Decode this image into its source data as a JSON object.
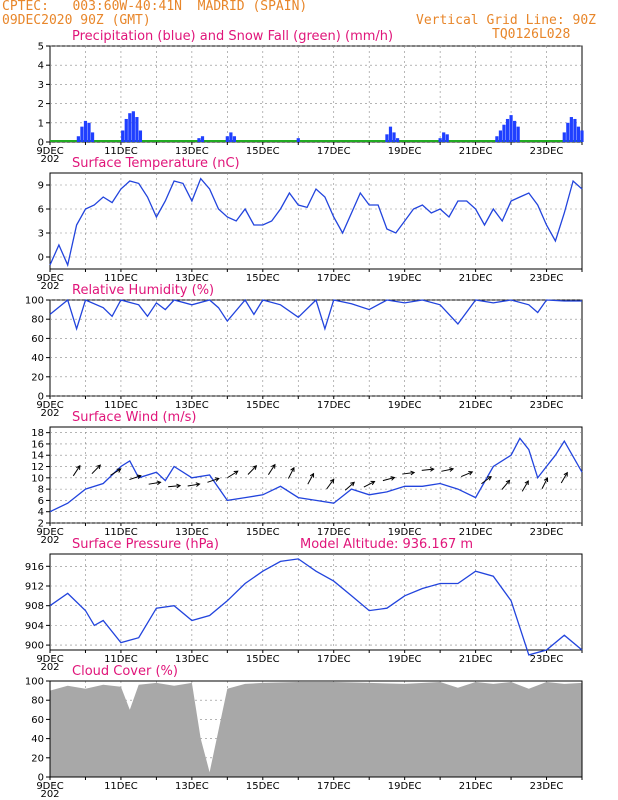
{
  "header": {
    "line1_left": "CPTEC:   003:60W-40:41N  MADRID (SPAIN)",
    "line2_left": "09DEC2020 90Z (GMT)",
    "line2_right": "Vertical Grid Line: 90Z",
    "line3_right": "TQ0126L028"
  },
  "x_axis": {
    "labels": [
      "9DEC",
      "11DEC",
      "13DEC",
      "15DEC",
      "17DEC",
      "19DEC",
      "21DEC",
      "23DEC"
    ],
    "year_stub": "202"
  },
  "colors": {
    "header": "#e8862a",
    "title": "#e0157a",
    "precip": "#1f3fff",
    "snow": "#22aa22",
    "line": "#2244dd",
    "cloud": "#a8a8a8",
    "arrow": "#000000"
  },
  "chart_data": [
    {
      "type": "bar",
      "name": "precipitation",
      "title": "Precipitation (blue) and Snow Fall (green) (mm/h)",
      "ylim": [
        0,
        5
      ],
      "yticks": [
        0,
        1,
        2,
        3,
        4,
        5
      ],
      "x_range_days": [
        0,
        15
      ],
      "series": [
        {
          "name": "Precipitation",
          "x": [
            0.8,
            0.9,
            1.0,
            1.1,
            1.2,
            2.05,
            2.15,
            2.25,
            2.35,
            2.45,
            2.55,
            4.2,
            4.3,
            5.0,
            5.1,
            5.2,
            7.0,
            9.5,
            9.6,
            9.7,
            9.8,
            11.0,
            11.1,
            11.2,
            12.6,
            12.7,
            12.8,
            12.9,
            13.0,
            13.1,
            13.2,
            14.5,
            14.6,
            14.7,
            14.8,
            14.9,
            15.0
          ],
          "values": [
            0.3,
            0.8,
            1.1,
            1.0,
            0.5,
            0.6,
            1.2,
            1.5,
            1.6,
            1.3,
            0.6,
            0.2,
            0.3,
            0.3,
            0.5,
            0.3,
            0.2,
            0.4,
            0.8,
            0.5,
            0.2,
            0.2,
            0.5,
            0.4,
            0.3,
            0.6,
            0.9,
            1.2,
            1.4,
            1.1,
            0.8,
            0.5,
            1.0,
            1.3,
            1.2,
            0.8,
            0.6
          ]
        },
        {
          "name": "Snow Fall",
          "x": [],
          "values": []
        }
      ]
    },
    {
      "type": "line",
      "name": "temperature",
      "title": "Surface Temperature (nC)",
      "ylim": [
        -1.5,
        10.5
      ],
      "yticks": [
        0,
        3,
        6,
        9
      ],
      "x": [
        0,
        0.25,
        0.5,
        0.75,
        1,
        1.25,
        1.5,
        1.75,
        2,
        2.25,
        2.5,
        2.75,
        3,
        3.25,
        3.5,
        3.75,
        4,
        4.25,
        4.5,
        4.75,
        5,
        5.25,
        5.5,
        5.75,
        6,
        6.25,
        6.5,
        6.75,
        7,
        7.25,
        7.5,
        7.75,
        8,
        8.25,
        8.5,
        8.75,
        9,
        9.25,
        9.5,
        9.75,
        10,
        10.25,
        10.5,
        10.75,
        11,
        11.25,
        11.5,
        11.75,
        12,
        12.25,
        12.5,
        12.75,
        13,
        13.25,
        13.5,
        13.75,
        14,
        14.25,
        14.5,
        14.75,
        15
      ],
      "values": [
        -1,
        1.5,
        -1,
        4,
        6,
        6.5,
        7.5,
        6.8,
        8.5,
        9.5,
        9.2,
        7.5,
        5,
        7,
        9.5,
        9.2,
        7,
        9.8,
        8.5,
        6,
        5,
        4.5,
        6,
        4,
        4,
        4.5,
        6,
        8,
        6.5,
        6.2,
        8.5,
        7.5,
        5,
        3,
        5.5,
        8,
        6.5,
        6.5,
        3.5,
        3,
        4.5,
        6,
        6.5,
        5.5,
        6,
        5,
        7,
        7,
        6,
        4,
        6,
        4.5,
        7,
        7.5,
        8,
        6.5,
        4,
        2,
        5.5,
        9.5,
        8.5
      ]
    },
    {
      "type": "line",
      "name": "humidity",
      "title": "Relative Humidity (%)",
      "ylim": [
        0,
        100
      ],
      "yticks": [
        0,
        20,
        40,
        60,
        80,
        100
      ],
      "x": [
        0,
        0.5,
        0.75,
        1,
        1.5,
        1.75,
        2,
        2.5,
        2.75,
        3,
        3.25,
        3.5,
        4,
        4.5,
        4.75,
        5,
        5.5,
        5.75,
        6,
        6.5,
        7,
        7.5,
        7.75,
        8,
        8.5,
        9,
        9.5,
        10,
        10.5,
        11,
        11.5,
        12,
        12.5,
        13,
        13.5,
        13.75,
        14,
        14.5,
        15
      ],
      "values": [
        85,
        100,
        70,
        100,
        92,
        83,
        100,
        95,
        83,
        97,
        90,
        100,
        95,
        100,
        92,
        78,
        100,
        85,
        100,
        95,
        82,
        100,
        70,
        100,
        96,
        90,
        100,
        97,
        100,
        95,
        75,
        100,
        97,
        100,
        95,
        87,
        100,
        99,
        99
      ]
    },
    {
      "type": "line",
      "name": "wind",
      "title": "Surface Wind (m/s)",
      "ylim": [
        2,
        19
      ],
      "yticks": [
        2,
        4,
        6,
        8,
        10,
        12,
        14,
        16,
        18
      ],
      "x": [
        0,
        0.5,
        1,
        1.5,
        2,
        2.25,
        2.5,
        3,
        3.25,
        3.5,
        4,
        4.5,
        5,
        5.5,
        6,
        6.5,
        7,
        7.5,
        8,
        8.5,
        9,
        9.5,
        10,
        10.5,
        11,
        11.5,
        12,
        12.5,
        13,
        13.25,
        13.5,
        13.75,
        14,
        14.25,
        14.5,
        15
      ],
      "values": [
        4,
        5.5,
        8,
        9,
        12,
        13,
        10,
        11,
        9.5,
        12,
        10,
        10.5,
        6,
        6.5,
        7,
        8.5,
        6.5,
        6,
        5.5,
        8,
        7,
        7.5,
        8.5,
        8.5,
        9,
        8,
        6.5,
        12,
        14,
        17,
        15,
        10,
        12,
        14,
        16.5,
        11
      ]
    },
    {
      "type": "line",
      "name": "pressure",
      "title": "Surface Pressure (hPa)",
      "annotation": "Model Altitude: 936.167 m",
      "ylim": [
        899,
        918.5
      ],
      "yticks": [
        900,
        904,
        908,
        912,
        916
      ],
      "x": [
        0,
        0.5,
        1,
        1.25,
        1.5,
        2,
        2.5,
        3,
        3.5,
        4,
        4.5,
        5,
        5.5,
        6,
        6.5,
        7,
        7.5,
        8,
        8.5,
        9,
        9.5,
        10,
        10.5,
        11,
        11.5,
        12,
        12.5,
        13,
        13.5,
        14,
        14.5,
        15
      ],
      "values": [
        908,
        910.5,
        907,
        904,
        905,
        900.5,
        901.5,
        907.5,
        908,
        905,
        906,
        909,
        912.5,
        915,
        917,
        917.5,
        915,
        913,
        910,
        907,
        907.5,
        910,
        911.5,
        912.5,
        912.5,
        915,
        914,
        909,
        898,
        899,
        902,
        899
      ]
    },
    {
      "type": "area",
      "name": "cloud_cover",
      "title": "Cloud Cover (%)",
      "ylim": [
        0,
        100
      ],
      "yticks": [
        0,
        20,
        40,
        60,
        80,
        100
      ],
      "x": [
        0,
        0.5,
        1,
        1.5,
        2,
        2.25,
        2.5,
        3,
        3.5,
        4,
        4.25,
        4.5,
        5,
        5.5,
        6,
        7,
        8,
        9,
        10,
        11,
        11.5,
        12,
        12.5,
        13,
        13.5,
        14,
        14.5,
        15
      ],
      "values": [
        90,
        95,
        92,
        96,
        94,
        70,
        96,
        98,
        95,
        98,
        40,
        5,
        92,
        97,
        98,
        99,
        99,
        98,
        97,
        99,
        93,
        99,
        97,
        99,
        92,
        99,
        97,
        98
      ]
    }
  ]
}
